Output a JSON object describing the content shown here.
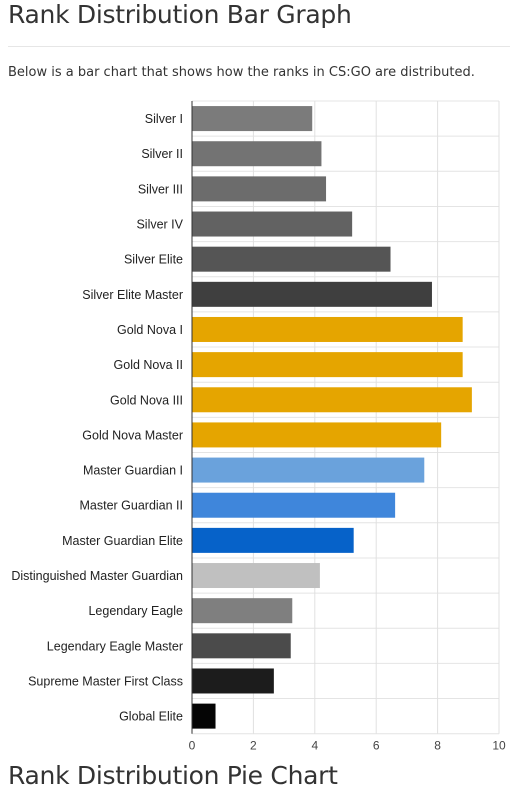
{
  "page": {
    "title": "Rank Distribution Bar Graph",
    "intro": "Below is a bar chart that shows how the ranks in CS:GO are distributed.",
    "next_heading": "Rank Distribution Pie Chart"
  },
  "chart_data": {
    "type": "bar",
    "orientation": "horizontal",
    "categories": [
      "Silver I",
      "Silver II",
      "Silver III",
      "Silver IV",
      "Silver Elite",
      "Silver Elite Master",
      "Gold Nova I",
      "Gold Nova II",
      "Gold Nova III",
      "Gold Nova Master",
      "Master Guardian I",
      "Master Guardian II",
      "Master Guardian Elite",
      "Distinguished Master Guardian",
      "Legendary Eagle",
      "Legendary Eagle Master",
      "Supreme Master First Class",
      "Global Elite"
    ],
    "values": [
      3.9,
      4.2,
      4.35,
      5.2,
      6.45,
      7.8,
      8.8,
      8.8,
      9.1,
      8.1,
      7.55,
      6.6,
      5.25,
      4.15,
      3.25,
      3.2,
      2.65,
      0.75
    ],
    "colors": [
      "#7b7b7b",
      "#737373",
      "#6c6c6c",
      "#626262",
      "#555555",
      "#3f3f3f",
      "#e5a500",
      "#e5a500",
      "#e5a500",
      "#e5a500",
      "#6aa2dc",
      "#3f86db",
      "#0662c9",
      "#c0c0c0",
      "#7f7f7f",
      "#4b4b4b",
      "#1c1c1c",
      "#050505"
    ],
    "xlim": [
      0,
      10
    ],
    "xticks": [
      "0",
      "2",
      "4",
      "6",
      "8",
      "10"
    ],
    "grid": true,
    "title": "",
    "xlabel": "",
    "ylabel": ""
  }
}
